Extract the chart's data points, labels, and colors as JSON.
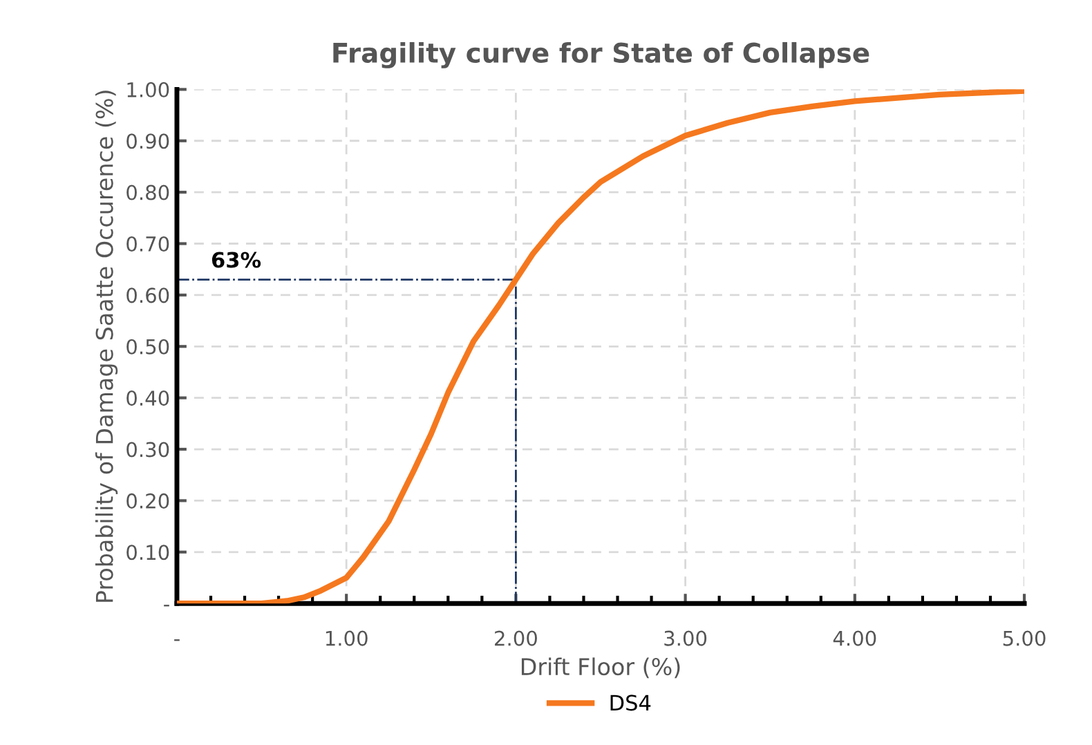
{
  "chart_data": {
    "type": "line",
    "title": "Fragility curve for State of Collapse",
    "xlabel": "Drift Floor (%)",
    "ylabel": "Probability of Damage Saatte Occurence (%)",
    "xlim": [
      0,
      5
    ],
    "ylim": [
      0,
      1
    ],
    "xticks": [
      {
        "value": 0,
        "label": "-"
      },
      {
        "value": 1,
        "label": "1.00"
      },
      {
        "value": 2,
        "label": "2.00"
      },
      {
        "value": 3,
        "label": "3.00"
      },
      {
        "value": 4,
        "label": "4.00"
      },
      {
        "value": 5,
        "label": "5.00"
      }
    ],
    "yticks": [
      {
        "value": 0,
        "label": "-"
      },
      {
        "value": 0.1,
        "label": "0.10"
      },
      {
        "value": 0.2,
        "label": "0.20"
      },
      {
        "value": 0.3,
        "label": "0.30"
      },
      {
        "value": 0.4,
        "label": "0.40"
      },
      {
        "value": 0.5,
        "label": "0.50"
      },
      {
        "value": 0.6,
        "label": "0.60"
      },
      {
        "value": 0.7,
        "label": "0.70"
      },
      {
        "value": 0.8,
        "label": "0.80"
      },
      {
        "value": 0.9,
        "label": "0.90"
      },
      {
        "value": 1,
        "label": "1.00"
      }
    ],
    "grid": true,
    "legend": "bottom",
    "marker": "none",
    "series": [
      {
        "name": "DS4",
        "color": "#f5781e",
        "line_style": "solid",
        "x": [
          0,
          0.25,
          0.5,
          0.65,
          0.75,
          0.85,
          1.0,
          1.1,
          1.25,
          1.4,
          1.5,
          1.6,
          1.75,
          1.9,
          2.0,
          2.1,
          2.25,
          2.4,
          2.5,
          2.75,
          3.0,
          3.25,
          3.5,
          3.75,
          4.0,
          4.5,
          5.0
        ],
        "values": [
          0,
          0,
          0,
          0.005,
          0.012,
          0.025,
          0.05,
          0.09,
          0.16,
          0.26,
          0.33,
          0.41,
          0.51,
          0.58,
          0.63,
          0.68,
          0.74,
          0.79,
          0.82,
          0.87,
          0.91,
          0.935,
          0.955,
          0.967,
          0.977,
          0.99,
          0.997
        ]
      },
      {
        "color": "#1f3864",
        "line_style": "dashdot",
        "x": [
          0,
          2,
          2
        ],
        "values": [
          0.63,
          0.63,
          0
        ]
      }
    ],
    "annotations": [
      {
        "text": "63%",
        "x": 0.2,
        "y": 0.63
      }
    ]
  }
}
